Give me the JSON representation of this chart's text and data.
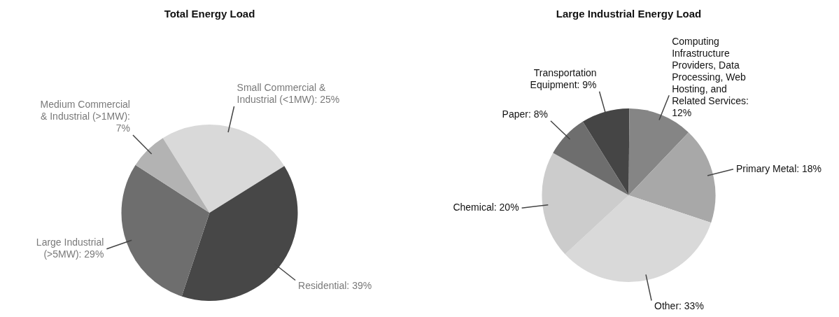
{
  "chart_data": [
    {
      "type": "pie",
      "title": "Total Energy Load",
      "categories": [
        "Small Commercial & Industrial (<1MW)",
        "Residential",
        "Large Industrial (>5MW)",
        "Medium Commercial & Industrial (>1MW)"
      ],
      "values": [
        25,
        39,
        29,
        7
      ],
      "value_labels": [
        ": 25%",
        ": 39%",
        ": 29%",
        ": 7%"
      ],
      "colors": [
        "#d9d9d9",
        "#474747",
        "#6e6e6e",
        "#b3b3b3"
      ],
      "legend": false
    },
    {
      "type": "pie",
      "title": "Large Industrial Energy Load",
      "categories": [
        "Transportation Equipment",
        "Computing Infrastructure Providers, Data Processing, Web Hosting, and Related Services",
        "Primary Metal",
        "Other",
        "Chemical",
        "Paper"
      ],
      "values": [
        9,
        12,
        18,
        33,
        20,
        8
      ],
      "value_labels": [
        ": 9%",
        ": 12%",
        ": 18%",
        ": 33%",
        ": 20%",
        ": 8%"
      ],
      "colors": [
        "#454545",
        "#858585",
        "#a8a8a8",
        "#d9d9d9",
        "#cccccc",
        "#6e6e6e"
      ],
      "legend": false
    }
  ]
}
